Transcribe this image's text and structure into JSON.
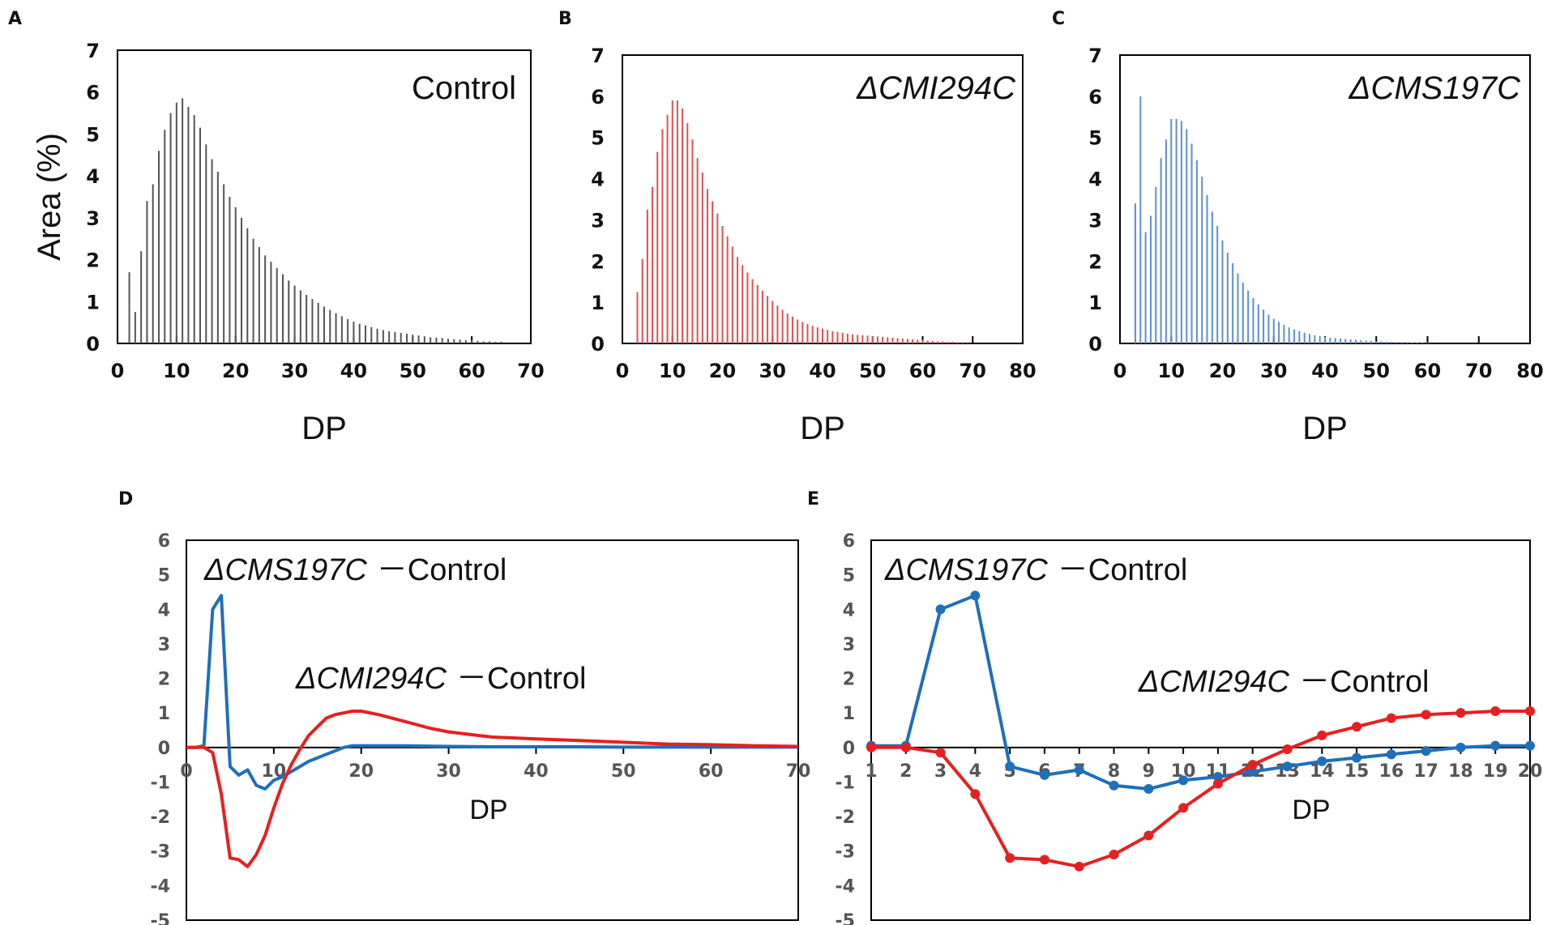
{
  "chart_data": [
    {
      "panel": "A",
      "type": "bar",
      "title": "Control",
      "title_italic": false,
      "xlabel": "DP",
      "ylabel": "Area (%)",
      "xlim": [
        0,
        70
      ],
      "ylim": [
        0,
        7
      ],
      "xticks": [
        0,
        10,
        20,
        30,
        40,
        50,
        60,
        70
      ],
      "yticks": [
        0,
        1,
        2,
        3,
        4,
        5,
        6,
        7
      ],
      "color": "#555555",
      "x_start": 2,
      "values": [
        1.7,
        0.75,
        2.2,
        3.4,
        3.8,
        4.6,
        5.1,
        5.5,
        5.75,
        5.85,
        5.65,
        5.45,
        5.15,
        4.75,
        4.4,
        4.1,
        3.8,
        3.5,
        3.25,
        3.0,
        2.75,
        2.5,
        2.3,
        2.1,
        1.95,
        1.8,
        1.65,
        1.5,
        1.38,
        1.27,
        1.16,
        1.06,
        0.97,
        0.88,
        0.8,
        0.72,
        0.65,
        0.58,
        0.52,
        0.47,
        0.43,
        0.39,
        0.35,
        0.32,
        0.29,
        0.27,
        0.25,
        0.23,
        0.21,
        0.19,
        0.17,
        0.15,
        0.14,
        0.13,
        0.11,
        0.1,
        0.09,
        0.08,
        0.07,
        0.06,
        0.05,
        0.05,
        0.04,
        0.04
      ]
    },
    {
      "panel": "B",
      "type": "bar",
      "title": "ΔCMI294C",
      "title_italic": true,
      "xlabel": "DP",
      "ylabel": "",
      "xlim": [
        0,
        80
      ],
      "ylim": [
        0,
        7
      ],
      "xticks": [
        0,
        10,
        20,
        30,
        40,
        50,
        60,
        70,
        80
      ],
      "yticks": [
        0,
        1,
        2,
        3,
        4,
        5,
        6,
        7
      ],
      "color": "#e05050",
      "x_start": 3,
      "values": [
        1.25,
        2.05,
        3.25,
        3.8,
        4.65,
        5.2,
        5.55,
        5.9,
        5.9,
        5.7,
        5.35,
        4.95,
        4.5,
        4.15,
        3.75,
        3.45,
        3.15,
        2.85,
        2.6,
        2.35,
        2.1,
        1.9,
        1.72,
        1.56,
        1.42,
        1.28,
        1.15,
        1.03,
        0.92,
        0.82,
        0.73,
        0.65,
        0.58,
        0.52,
        0.47,
        0.43,
        0.39,
        0.36,
        0.33,
        0.3,
        0.28,
        0.26,
        0.24,
        0.22,
        0.21,
        0.2,
        0.19,
        0.18,
        0.17,
        0.16,
        0.15,
        0.14,
        0.13,
        0.12,
        0.11,
        0.1,
        0.09,
        0.08,
        0.07,
        0.06,
        0.05,
        0.05,
        0.04,
        0.04,
        0.03,
        0.03,
        0.03
      ]
    },
    {
      "panel": "C",
      "type": "bar",
      "title": "ΔCMS197C",
      "title_italic": true,
      "xlabel": "DP",
      "ylabel": "",
      "xlim": [
        0,
        80
      ],
      "ylim": [
        0,
        7
      ],
      "xticks": [
        0,
        10,
        20,
        30,
        40,
        50,
        60,
        70,
        80
      ],
      "yticks": [
        0,
        1,
        2,
        3,
        4,
        5,
        6,
        7
      ],
      "color": "#5b8fd6",
      "x_start": 3,
      "values": [
        3.4,
        6.0,
        2.7,
        3.1,
        3.8,
        4.5,
        4.95,
        5.45,
        5.45,
        5.4,
        5.2,
        4.85,
        4.45,
        4.05,
        3.6,
        3.2,
        2.85,
        2.5,
        2.2,
        1.95,
        1.7,
        1.48,
        1.28,
        1.1,
        0.95,
        0.82,
        0.7,
        0.6,
        0.52,
        0.45,
        0.39,
        0.34,
        0.3,
        0.26,
        0.23,
        0.2,
        0.18,
        0.16,
        0.14,
        0.13,
        0.12,
        0.11,
        0.1,
        0.09,
        0.08,
        0.07,
        0.06,
        0.05,
        0.05,
        0.04,
        0.04,
        0.03,
        0.03,
        0.03,
        0.02,
        0.02,
        0.02,
        0.02
      ]
    },
    {
      "panel": "D",
      "type": "line",
      "xlabel": "DP",
      "xlim": [
        0,
        70
      ],
      "ylim": [
        -5,
        6
      ],
      "xticks": [
        0,
        10,
        20,
        30,
        40,
        50,
        60,
        70
      ],
      "yticks": [
        -5,
        -4,
        -3,
        -2,
        -1,
        0,
        1,
        2,
        3,
        4,
        5,
        6
      ],
      "series": [
        {
          "name": "ΔCMS197C − Control",
          "label_italic": "ΔCMS197C",
          "label_rest": "－Control",
          "color": "#1f6fba",
          "x": [
            0,
            1,
            2,
            3,
            4,
            5,
            6,
            7,
            8,
            9,
            10,
            11,
            12,
            13,
            14,
            15,
            16,
            17,
            18,
            19,
            20,
            25,
            30,
            35,
            40,
            45,
            50,
            55,
            60,
            65,
            70
          ],
          "y": [
            0,
            0,
            0.05,
            4.0,
            4.4,
            -0.55,
            -0.8,
            -0.65,
            -1.1,
            -1.2,
            -0.95,
            -0.85,
            -0.7,
            -0.55,
            -0.4,
            -0.3,
            -0.2,
            -0.1,
            0,
            0.05,
            0.05,
            0.05,
            0.03,
            0.02,
            0.02,
            0.02,
            0.01,
            0.01,
            0.01,
            0.01,
            0.01
          ]
        },
        {
          "name": "ΔCMI294C − Control",
          "label_italic": "ΔCMI294C",
          "label_rest": "－Control",
          "color": "#e62020",
          "x": [
            0,
            1,
            2,
            3,
            4,
            5,
            6,
            7,
            8,
            9,
            10,
            11,
            12,
            13,
            14,
            15,
            16,
            17,
            18,
            19,
            20,
            22,
            25,
            28,
            30,
            35,
            40,
            45,
            50,
            55,
            60,
            65,
            70
          ],
          "y": [
            0,
            0,
            0,
            -0.15,
            -1.35,
            -3.2,
            -3.25,
            -3.45,
            -3.1,
            -2.55,
            -1.75,
            -1.05,
            -0.5,
            -0.05,
            0.35,
            0.6,
            0.85,
            0.95,
            1.0,
            1.05,
            1.05,
            0.95,
            0.75,
            0.55,
            0.45,
            0.3,
            0.25,
            0.2,
            0.15,
            0.1,
            0.08,
            0.05,
            0.03
          ]
        }
      ]
    },
    {
      "panel": "E",
      "type": "line",
      "xlabel": "DP",
      "xlim": [
        1,
        20
      ],
      "ylim": [
        -5,
        6
      ],
      "xticks": [
        1,
        2,
        3,
        4,
        5,
        6,
        7,
        8,
        9,
        10,
        11,
        12,
        13,
        14,
        15,
        16,
        17,
        18,
        19,
        20
      ],
      "yticks": [
        -5,
        -4,
        -3,
        -2,
        -1,
        0,
        1,
        2,
        3,
        4,
        5,
        6
      ],
      "series": [
        {
          "name": "ΔCMS197C − Control",
          "label_italic": "ΔCMS197C",
          "label_rest": "－Control",
          "color": "#1f6fba",
          "x": [
            1,
            2,
            3,
            4,
            5,
            6,
            7,
            8,
            9,
            10,
            11,
            12,
            13,
            14,
            15,
            16,
            17,
            18,
            19,
            20
          ],
          "y": [
            0.05,
            0.05,
            4.0,
            4.4,
            -0.55,
            -0.8,
            -0.65,
            -1.1,
            -1.2,
            -0.95,
            -0.85,
            -0.7,
            -0.55,
            -0.4,
            -0.3,
            -0.2,
            -0.1,
            0.0,
            0.05,
            0.05
          ]
        },
        {
          "name": "ΔCMI294C − Control",
          "label_italic": "ΔCMI294C",
          "label_rest": "－Control",
          "color": "#e62020",
          "x": [
            1,
            2,
            3,
            4,
            5,
            6,
            7,
            8,
            9,
            10,
            11,
            12,
            13,
            14,
            15,
            16,
            17,
            18,
            19,
            20
          ],
          "y": [
            0.0,
            0.0,
            -0.15,
            -1.35,
            -3.2,
            -3.25,
            -3.45,
            -3.1,
            -2.55,
            -1.75,
            -1.05,
            -0.5,
            -0.05,
            0.35,
            0.6,
            0.85,
            0.95,
            1.0,
            1.05,
            1.05
          ]
        }
      ]
    }
  ]
}
